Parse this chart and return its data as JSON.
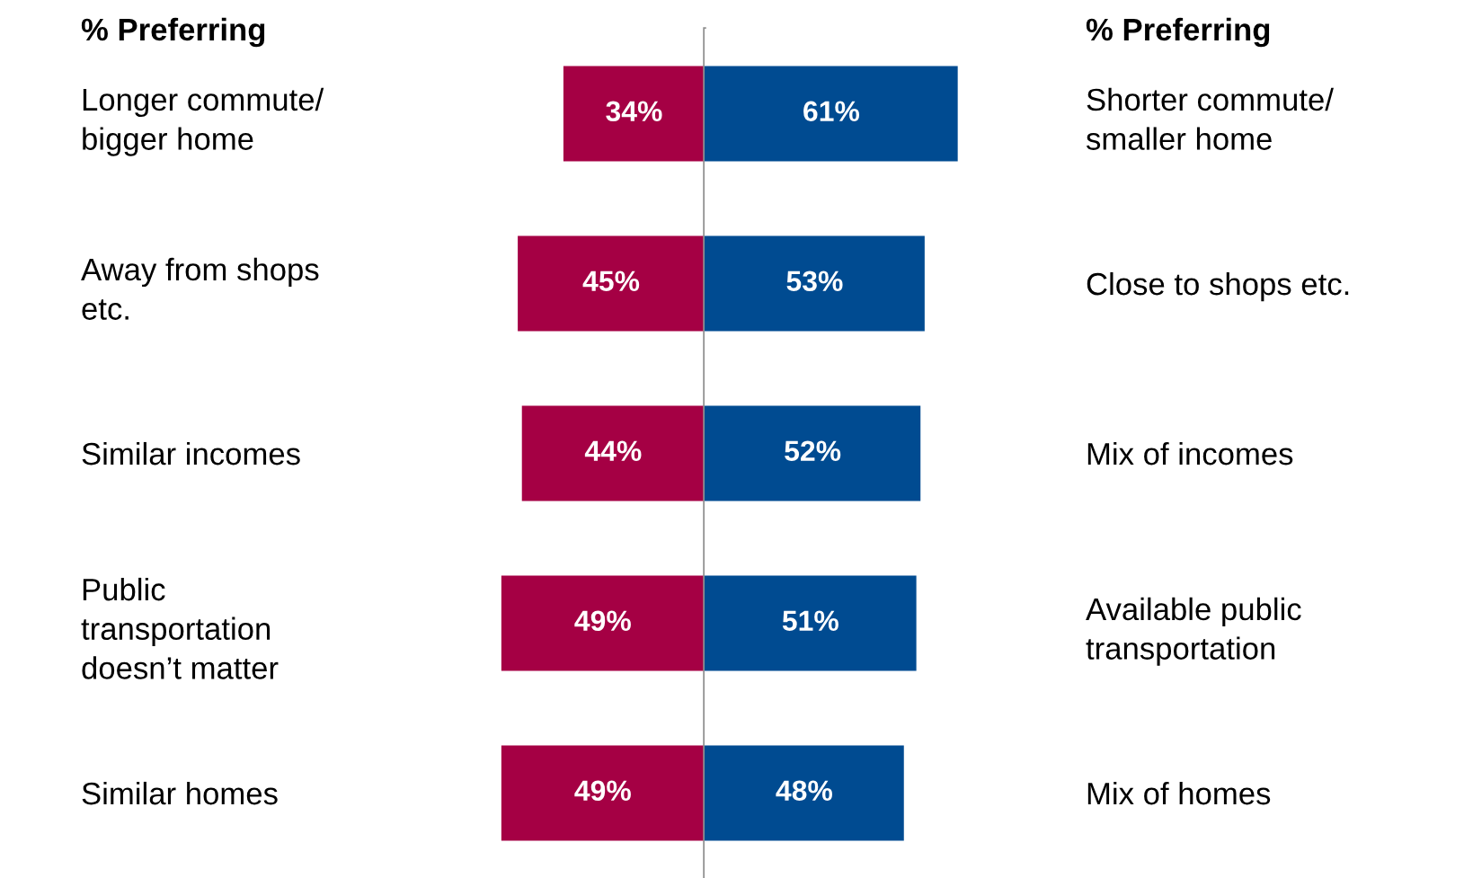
{
  "chart_data": [
    {
      "type": "bar",
      "orientation": "horizontal",
      "categories": [
        "Longer commute/\nbigger home",
        "Away from shops\netc.",
        "Similar incomes",
        "Public\ntransportation\ndoesn’t matter",
        "Similar homes"
      ],
      "series": [
        {
          "color": "#a50044",
          "values": [
            34,
            45,
            44,
            49,
            49
          ],
          "value_labels": [
            "34%",
            "45%",
            "44%",
            "49%",
            "49%"
          ]
        }
      ],
      "xlim": [
        49,
        0
      ],
      "tick_labels": "y",
      "ref_lines": [
        {
          "axis": "x",
          "value": 0,
          "color": "#909090"
        }
      ],
      "annotations": [
        "% Preferring"
      ],
      "grid": false,
      "legend": false
    },
    {
      "type": "bar",
      "orientation": "horizontal",
      "categories": [
        null,
        null,
        null,
        null,
        null
      ],
      "y2_categories": [
        "Shorter commute/\nsmaller home",
        "Close to shops etc.",
        "Mix of incomes",
        "Available public\ntransportation",
        "Mix of homes"
      ],
      "series": [
        {
          "color": "#004b91",
          "values": [
            61,
            53,
            52,
            51,
            48
          ],
          "value_labels": [
            "61%",
            "53%",
            "52%",
            "51%",
            "48%"
          ]
        }
      ],
      "xlim": [
        0,
        61
      ],
      "tick_labels": "y",
      "annotations": [
        "% Preferring"
      ],
      "grid": false,
      "legend": false
    }
  ]
}
